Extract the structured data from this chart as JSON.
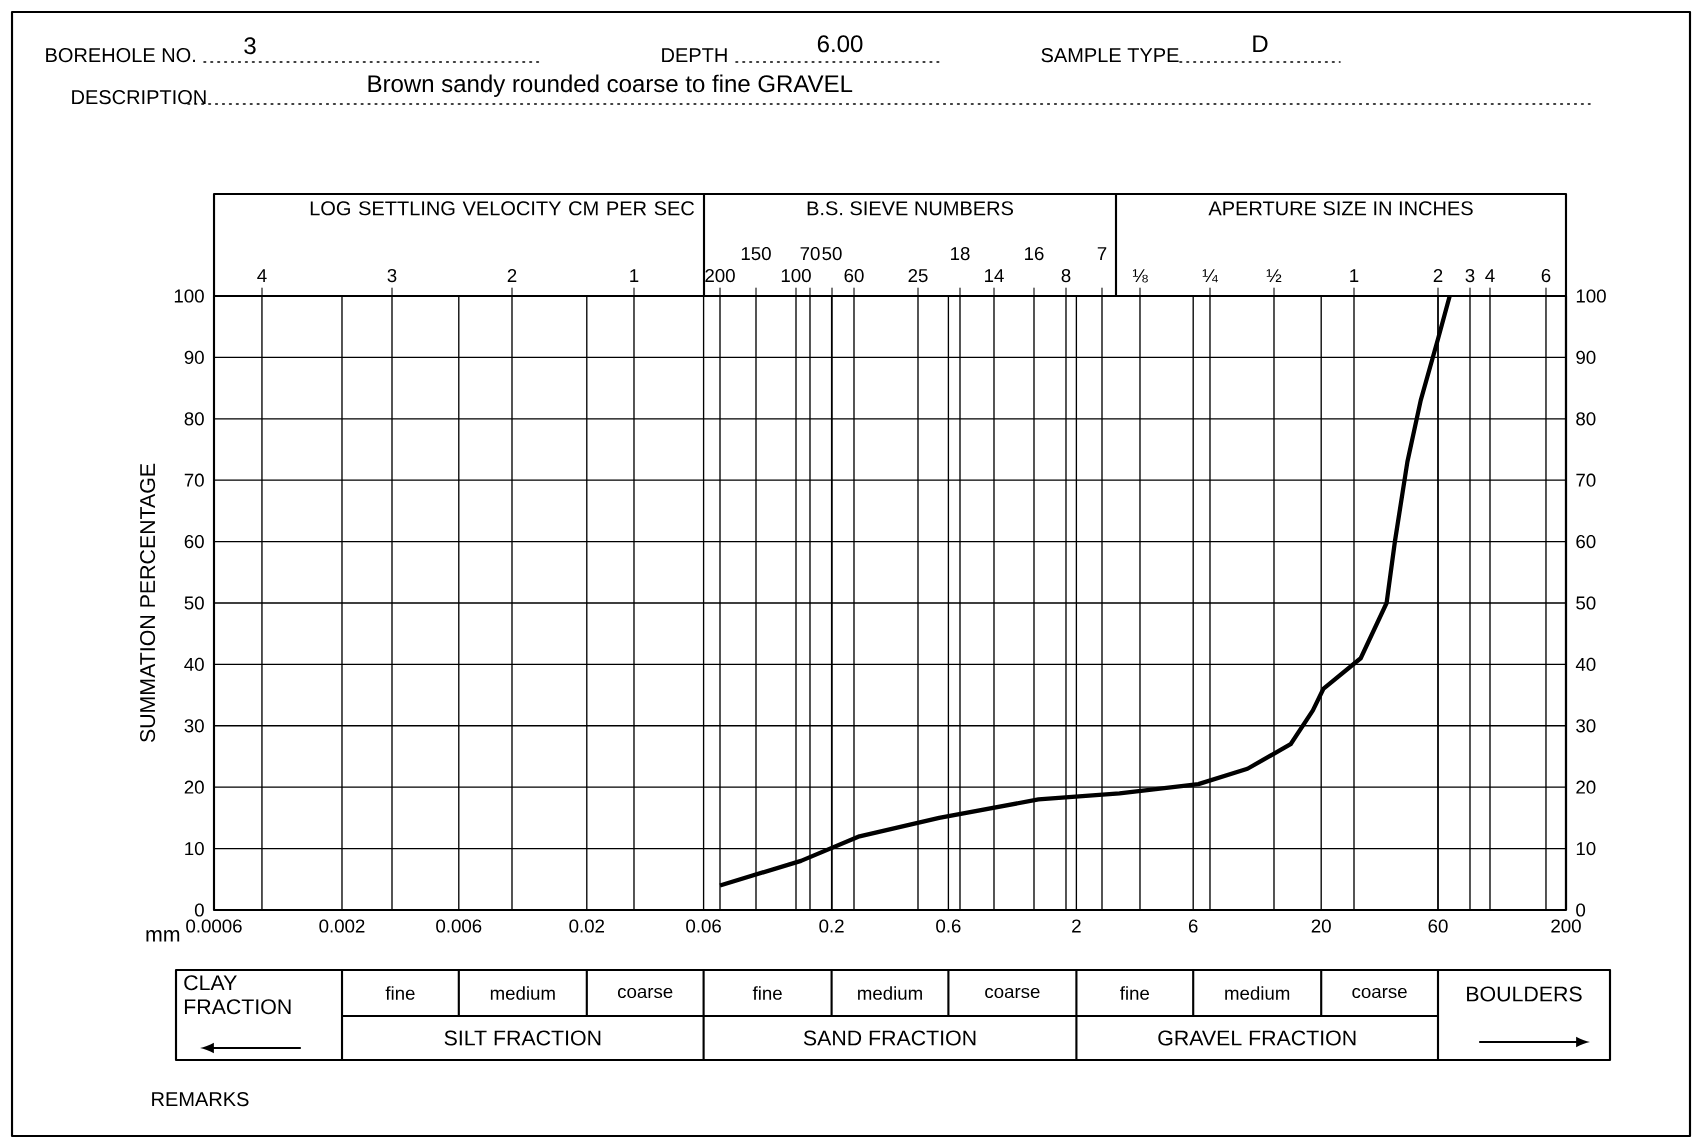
{
  "chart_data": {
    "type": "line",
    "xlabel": "mm",
    "ylabel": "SUMMATION PERCENTAGE",
    "log": "x",
    "grid": true,
    "line_style": "solid",
    "xlim": [
      0.0006,
      200
    ],
    "ylim": [
      0,
      100
    ],
    "y2lim": [
      0,
      100
    ],
    "xticks": [
      0.0006,
      0.002,
      0.006,
      0.02,
      0.06,
      0.2,
      0.6,
      2,
      6,
      20,
      60,
      200
    ],
    "yticks": [
      0,
      10,
      20,
      30,
      40,
      50,
      60,
      70,
      80,
      90,
      100
    ],
    "y2ticks": [
      0,
      10,
      20,
      30,
      40,
      50,
      60,
      70,
      80,
      90,
      100
    ],
    "x": [
      0.07,
      0.15,
      0.26,
      0.55,
      1.4,
      3,
      6.3,
      10,
      15,
      18.5,
      20.4,
      29,
      37,
      40,
      45,
      51,
      60,
      67
    ],
    "series": [
      {
        "color": "#000000",
        "values": [
          4,
          8,
          12,
          15,
          18,
          19,
          20.5,
          23,
          27,
          32.5,
          36,
          41,
          50,
          60,
          73,
          83,
          93,
          100
        ]
      }
    ],
    "annotations": [
      "BOREHOLE NO.",
      "3",
      "DEPTH",
      "6.00",
      "SAMPLE TYPE",
      "D",
      "DESCRIPTION",
      "Brown sandy rounded coarse to fine GRAVEL",
      "LOG SETTLING VELOCITY CM PER SEC",
      "4",
      "3",
      "2",
      "1",
      "B.S. SIEVE NUMBERS",
      "200",
      "150",
      "100",
      "70",
      "50",
      "60",
      "25",
      "18",
      "14",
      "16",
      "8",
      "7",
      "APERTURE SIZE IN INCHES",
      "⅛",
      "¼",
      "½",
      "1",
      "2",
      "3",
      "4",
      "6",
      "CLAY FRACTION",
      "fine",
      "medium",
      "coarse",
      "SILT FRACTION",
      "fine",
      "medium",
      "coarse",
      "SAND FRACTION",
      "fine",
      "medium",
      "coarse",
      "GRAVEL FRACTION",
      "BOULDERS",
      "REMARKS"
    ]
  }
}
